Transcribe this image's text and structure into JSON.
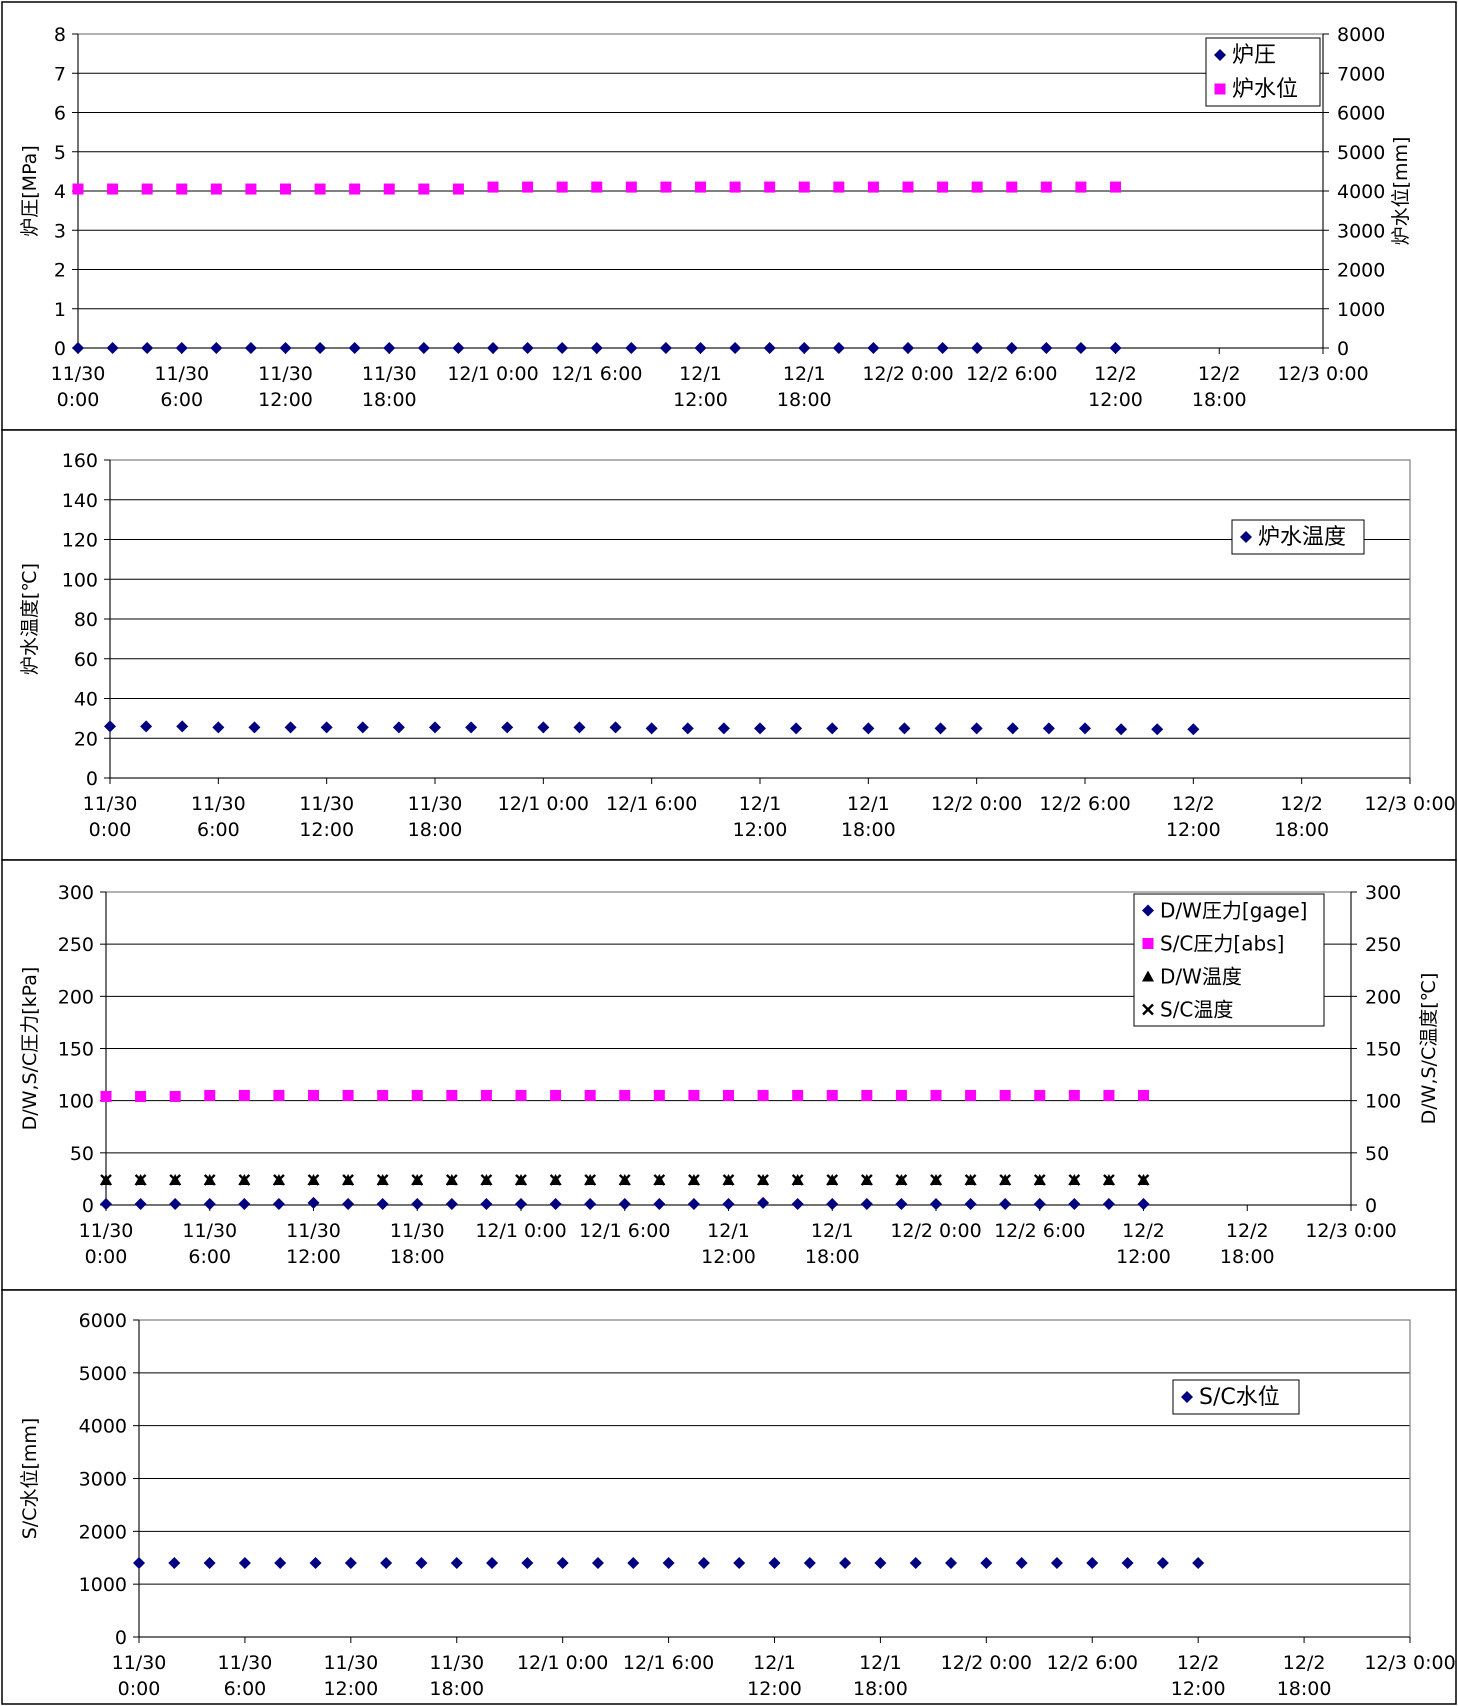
{
  "chart_data": [
    {
      "type": "scatter",
      "x_ticks": [
        "11/30\n0:00",
        "11/30\n6:00",
        "11/30\n12:00",
        "11/30\n18:00",
        "12/1 0:00",
        "12/1 6:00",
        "12/1\n12:00",
        "12/1\n18:00",
        "12/2 0:00",
        "12/2 6:00",
        "12/2\n12:00",
        "12/2\n18:00",
        "12/3 0:00"
      ],
      "x_range_hours": [
        0,
        72
      ],
      "ylabel": "炉圧[MPa]",
      "ylim": [
        0,
        8
      ],
      "yticks": [
        0,
        1,
        2,
        3,
        4,
        5,
        6,
        7,
        8
      ],
      "y2label": "炉水位[mm]",
      "y2lim": [
        0,
        8000
      ],
      "y2ticks": [
        0,
        1000,
        2000,
        3000,
        4000,
        5000,
        6000,
        7000,
        8000
      ],
      "grid": true,
      "legend_position": "top-right",
      "series": [
        {
          "name": "炉圧",
          "marker": "diamond",
          "color": "#000080",
          "axis": "left",
          "x": [
            0,
            2,
            4,
            6,
            8,
            10,
            12,
            14,
            16,
            18,
            20,
            22,
            24,
            26,
            28,
            30,
            32,
            34,
            36,
            38,
            40,
            42,
            44,
            46,
            48,
            50,
            52,
            54,
            56,
            58,
            60
          ],
          "values": [
            0,
            0,
            0,
            0,
            0,
            0,
            0,
            0,
            0,
            0,
            0,
            0,
            0,
            0,
            0,
            0,
            0,
            0,
            0,
            0,
            0,
            0,
            0,
            0,
            0,
            0,
            0,
            0,
            0,
            0,
            0
          ]
        },
        {
          "name": "炉水位",
          "marker": "square",
          "color": "#ff00ff",
          "axis": "right",
          "x": [
            0,
            2,
            4,
            6,
            8,
            10,
            12,
            14,
            16,
            18,
            20,
            22,
            24,
            26,
            28,
            30,
            32,
            34,
            36,
            38,
            40,
            42,
            44,
            46,
            48,
            50,
            52,
            54,
            56,
            58,
            60
          ],
          "values": [
            4050,
            4050,
            4050,
            4050,
            4050,
            4050,
            4050,
            4050,
            4050,
            4050,
            4050,
            4050,
            4100,
            4100,
            4100,
            4100,
            4100,
            4100,
            4100,
            4100,
            4100,
            4100,
            4100,
            4100,
            4100,
            4100,
            4100,
            4100,
            4100,
            4100,
            4100
          ]
        }
      ]
    },
    {
      "type": "scatter",
      "x_ticks": [
        "11/30\n0:00",
        "11/30\n6:00",
        "11/30\n12:00",
        "11/30\n18:00",
        "12/1 0:00",
        "12/1 6:00",
        "12/1\n12:00",
        "12/1\n18:00",
        "12/2 0:00",
        "12/2 6:00",
        "12/2\n12:00",
        "12/2\n18:00",
        "12/3 0:00"
      ],
      "x_range_hours": [
        0,
        72
      ],
      "ylabel": "炉水温度[℃]",
      "ylim": [
        0,
        160
      ],
      "yticks": [
        0,
        20,
        40,
        60,
        80,
        100,
        120,
        140,
        160
      ],
      "grid": true,
      "legend_position": "top-right",
      "series": [
        {
          "name": "炉水温度",
          "marker": "diamond",
          "color": "#000080",
          "axis": "left",
          "x": [
            0,
            2,
            4,
            6,
            8,
            10,
            12,
            14,
            16,
            18,
            20,
            22,
            24,
            26,
            28,
            30,
            32,
            34,
            36,
            38,
            40,
            42,
            44,
            46,
            48,
            50,
            52,
            54,
            56,
            58,
            60
          ],
          "values": [
            26,
            26,
            26,
            25.5,
            25.5,
            25.5,
            25.5,
            25.5,
            25.5,
            25.5,
            25.5,
            25.5,
            25.5,
            25.5,
            25.5,
            25,
            25,
            25,
            25,
            25,
            25,
            25,
            25,
            25,
            25,
            25,
            25,
            25,
            24.5,
            24.5,
            24.5
          ]
        }
      ]
    },
    {
      "type": "scatter",
      "x_ticks": [
        "11/30\n0:00",
        "11/30\n6:00",
        "11/30\n12:00",
        "11/30\n18:00",
        "12/1 0:00",
        "12/1 6:00",
        "12/1\n12:00",
        "12/1\n18:00",
        "12/2 0:00",
        "12/2 6:00",
        "12/2\n12:00",
        "12/2\n18:00",
        "12/3 0:00"
      ],
      "x_range_hours": [
        0,
        72
      ],
      "ylabel": "D/W,S/C圧力[kPa]",
      "ylim": [
        0,
        300
      ],
      "yticks": [
        0,
        50,
        100,
        150,
        200,
        250,
        300
      ],
      "y2label": "D/W,S/C温度[℃]",
      "y2lim": [
        0,
        300
      ],
      "y2ticks": [
        0,
        50,
        100,
        150,
        200,
        250,
        300
      ],
      "grid": true,
      "legend_position": "top-right",
      "series": [
        {
          "name": "D/W圧力[gage]",
          "marker": "diamond",
          "color": "#000080",
          "axis": "left",
          "x": [
            0,
            2,
            4,
            6,
            8,
            10,
            12,
            14,
            16,
            18,
            20,
            22,
            24,
            26,
            28,
            30,
            32,
            34,
            36,
            38,
            40,
            42,
            44,
            46,
            48,
            50,
            52,
            54,
            56,
            58,
            60
          ],
          "values": [
            1,
            1,
            1,
            1,
            1,
            1,
            2,
            1,
            1,
            1,
            1,
            1,
            1,
            1,
            1,
            1,
            1,
            1,
            1,
            2,
            1,
            1,
            1,
            1,
            1,
            1,
            1,
            1,
            1,
            1,
            1
          ]
        },
        {
          "name": "S/C圧力[abs]",
          "marker": "square",
          "color": "#ff00ff",
          "axis": "left",
          "x": [
            0,
            2,
            4,
            6,
            8,
            10,
            12,
            14,
            16,
            18,
            20,
            22,
            24,
            26,
            28,
            30,
            32,
            34,
            36,
            38,
            40,
            42,
            44,
            46,
            48,
            50,
            52,
            54,
            56,
            58,
            60
          ],
          "values": [
            104,
            104,
            104,
            105,
            105,
            105,
            105,
            105,
            105,
            105,
            105,
            105,
            105,
            105,
            105,
            105,
            105,
            105,
            105,
            105,
            105,
            105,
            105,
            105,
            105,
            105,
            105,
            105,
            105,
            105,
            105
          ]
        },
        {
          "name": "D/W温度",
          "marker": "triangle",
          "color": "#000000",
          "axis": "right",
          "x": [
            0,
            2,
            4,
            6,
            8,
            10,
            12,
            14,
            16,
            18,
            20,
            22,
            24,
            26,
            28,
            30,
            32,
            34,
            36,
            38,
            40,
            42,
            44,
            46,
            48,
            50,
            52,
            54,
            56,
            58,
            60
          ],
          "values": [
            24,
            24,
            24,
            24,
            24,
            24,
            24,
            24,
            24,
            24,
            24,
            24,
            24,
            24,
            24,
            24,
            24,
            24,
            24,
            24,
            24,
            24,
            24,
            24,
            24,
            24,
            24,
            24,
            24,
            24,
            24
          ]
        },
        {
          "name": "S/C温度",
          "marker": "x",
          "color": "#000000",
          "axis": "right",
          "x": [
            0,
            2,
            4,
            6,
            8,
            10,
            12,
            14,
            16,
            18,
            20,
            22,
            24,
            26,
            28,
            30,
            32,
            34,
            36,
            38,
            40,
            42,
            44,
            46,
            48,
            50,
            52,
            54,
            56,
            58,
            60
          ],
          "values": [
            24,
            24,
            24,
            24,
            24,
            24,
            24,
            24,
            24,
            24,
            24,
            24,
            24,
            24,
            24,
            24,
            24,
            24,
            24,
            24,
            24,
            24,
            24,
            24,
            24,
            24,
            24,
            24,
            24,
            24,
            24
          ]
        }
      ]
    },
    {
      "type": "scatter",
      "x_ticks": [
        "11/30\n0:00",
        "11/30\n6:00",
        "11/30\n12:00",
        "11/30\n18:00",
        "12/1 0:00",
        "12/1 6:00",
        "12/1\n12:00",
        "12/1\n18:00",
        "12/2 0:00",
        "12/2 6:00",
        "12/2\n12:00",
        "12/2\n18:00",
        "12/3 0:00"
      ],
      "x_range_hours": [
        0,
        72
      ],
      "ylabel": "S/C水位[mm]",
      "ylim": [
        0,
        6000
      ],
      "yticks": [
        0,
        1000,
        2000,
        3000,
        4000,
        5000,
        6000
      ],
      "grid": true,
      "legend_position": "top-right",
      "series": [
        {
          "name": "S/C水位",
          "marker": "diamond",
          "color": "#000080",
          "axis": "left",
          "x": [
            0,
            2,
            4,
            6,
            8,
            10,
            12,
            14,
            16,
            18,
            20,
            22,
            24,
            26,
            28,
            30,
            32,
            34,
            36,
            38,
            40,
            42,
            44,
            46,
            48,
            50,
            52,
            54,
            56,
            58,
            60
          ],
          "values": [
            1400,
            1400,
            1400,
            1400,
            1400,
            1400,
            1400,
            1400,
            1400,
            1400,
            1400,
            1400,
            1400,
            1400,
            1400,
            1400,
            1400,
            1400,
            1400,
            1400,
            1400,
            1400,
            1400,
            1400,
            1400,
            1400,
            1400,
            1400,
            1400,
            1400,
            1400
          ]
        }
      ]
    }
  ]
}
